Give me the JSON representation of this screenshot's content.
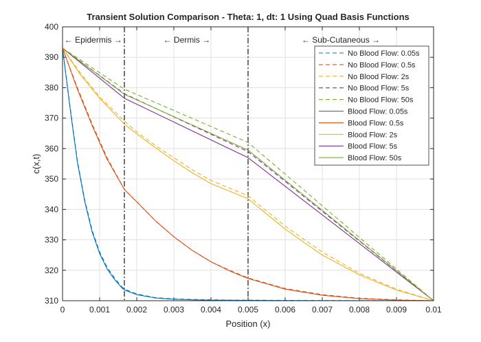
{
  "chart_data": {
    "type": "line",
    "title": "Transient Solution Comparison - Theta: 1, dt: 1 Using Quad Basis Functions",
    "xlabel": "Position (x)",
    "ylabel": "c(x,t)",
    "xlim": [
      0,
      0.01
    ],
    "ylim": [
      310,
      400
    ],
    "xticks": [
      "0",
      "0.001",
      "0.002",
      "0.003",
      "0.004",
      "0.005",
      "0.006",
      "0.007",
      "0.008",
      "0.009",
      "0.01"
    ],
    "yticks": [
      "310",
      "320",
      "330",
      "340",
      "350",
      "360",
      "370",
      "380",
      "390",
      "400"
    ],
    "grid": true,
    "legend_position": "top-right",
    "region_boundaries": [
      0.00166667,
      0.005
    ],
    "regions": [
      {
        "label": "← Epidermis →",
        "x": 0.00083
      },
      {
        "label": "← Dermis →",
        "x": 0.00335
      },
      {
        "label": "← Sub-Cutaneous →",
        "x": 0.0075
      }
    ],
    "colors": {
      "c005": "#0072BD",
      "c05": "#D95319",
      "c2": "#EDB120",
      "c5": "#7E2F8E",
      "c50": "#77AC30"
    },
    "series": [
      {
        "name": "No Blood Flow: 0.05s",
        "color": "#0072BD",
        "style": "dashed",
        "x": [
          0,
          0.0002,
          0.0004,
          0.0006,
          0.0008,
          0.001,
          0.0012,
          0.0014,
          0.0016,
          0.00167,
          0.002,
          0.0025,
          0.003,
          0.0035,
          0.004,
          0.0045,
          0.005,
          0.006,
          0.007,
          0.008,
          0.009,
          0.01
        ],
        "y": [
          393,
          374,
          356,
          343,
          333,
          326,
          321,
          317.5,
          314.5,
          313.8,
          312.2,
          311,
          310.6,
          310.4,
          310.3,
          310.2,
          310.2,
          310.1,
          310.05,
          310.02,
          310.01,
          310
        ]
      },
      {
        "name": "No Blood Flow: 0.5s",
        "color": "#D95319",
        "style": "dashed",
        "x": [
          0,
          0.0004,
          0.0008,
          0.0012,
          0.00167,
          0.002,
          0.0025,
          0.003,
          0.0035,
          0.004,
          0.0045,
          0.005,
          0.006,
          0.007,
          0.008,
          0.009,
          0.01
        ],
        "y": [
          393,
          380,
          368,
          357,
          346.5,
          342.5,
          336.3,
          331,
          326.5,
          322.8,
          320,
          317.5,
          314,
          312,
          310.8,
          310.3,
          310
        ]
      },
      {
        "name": "No Blood Flow: 2s",
        "color": "#EDB120",
        "style": "dashed",
        "x": [
          0,
          0.0005,
          0.001,
          0.00167,
          0.002,
          0.0025,
          0.003,
          0.0035,
          0.004,
          0.0045,
          0.005,
          0.006,
          0.007,
          0.008,
          0.009,
          0.01
        ],
        "y": [
          393,
          384.5,
          377,
          369,
          365.5,
          361,
          357,
          353,
          349.5,
          347,
          344.5,
          334.5,
          326,
          319,
          313.8,
          310
        ]
      },
      {
        "name": "No Blood Flow: 5s",
        "color": "#7E2F8E",
        "style": "dashed",
        "x": [
          0,
          0.00167,
          0.005,
          0.01
        ],
        "y": [
          393,
          378,
          359,
          310
        ]
      },
      {
        "name": "No Blood Flow: 50s",
        "color": "#77AC30",
        "style": "dashed",
        "x": [
          0,
          0.00167,
          0.005,
          0.01
        ],
        "y": [
          393,
          379.5,
          362,
          310
        ]
      },
      {
        "name": "Blood Flow: 0.05s",
        "color": "#0072BD",
        "style": "solid",
        "x": [
          0,
          0.0002,
          0.0004,
          0.0006,
          0.0008,
          0.001,
          0.0012,
          0.0014,
          0.0016,
          0.00167,
          0.002,
          0.0025,
          0.003,
          0.0035,
          0.004,
          0.0045,
          0.005,
          0.006,
          0.007,
          0.008,
          0.009,
          0.01
        ],
        "y": [
          393,
          373.5,
          355.5,
          342.5,
          332.5,
          325.5,
          320.5,
          317,
          314.2,
          313.5,
          312,
          310.9,
          310.5,
          310.3,
          310.2,
          310.15,
          310.1,
          310.05,
          310.02,
          310.01,
          310.005,
          310
        ]
      },
      {
        "name": "Blood Flow: 0.5s",
        "color": "#D95319",
        "style": "solid",
        "x": [
          0,
          0.0004,
          0.0008,
          0.0012,
          0.00167,
          0.002,
          0.0025,
          0.003,
          0.0035,
          0.004,
          0.0045,
          0.005,
          0.006,
          0.007,
          0.008,
          0.009,
          0.01
        ],
        "y": [
          393,
          379.5,
          367.5,
          356.5,
          346.5,
          342.5,
          336.3,
          331,
          326.5,
          322.8,
          319.8,
          317.3,
          313.8,
          311.8,
          310.7,
          310.2,
          310
        ]
      },
      {
        "name": "Blood Flow: 2s",
        "color": "#EDB120",
        "style": "solid",
        "x": [
          0,
          0.0005,
          0.001,
          0.00167,
          0.002,
          0.0025,
          0.003,
          0.0035,
          0.004,
          0.0045,
          0.005,
          0.006,
          0.007,
          0.008,
          0.009,
          0.01
        ],
        "y": [
          393,
          384,
          376.5,
          368,
          364.8,
          360.3,
          356,
          352,
          348.5,
          346,
          343.5,
          333.5,
          325,
          318.5,
          313.5,
          310
        ]
      },
      {
        "name": "Blood Flow: 5s",
        "color": "#7E2F8E",
        "style": "solid",
        "x": [
          0,
          0.00167,
          0.005,
          0.01
        ],
        "y": [
          393,
          376.5,
          357,
          310
        ]
      },
      {
        "name": "Blood Flow: 50s",
        "color": "#77AC30",
        "style": "solid",
        "x": [
          0,
          0.00167,
          0.005,
          0.01
        ],
        "y": [
          393,
          377.8,
          359.5,
          310
        ]
      }
    ]
  }
}
